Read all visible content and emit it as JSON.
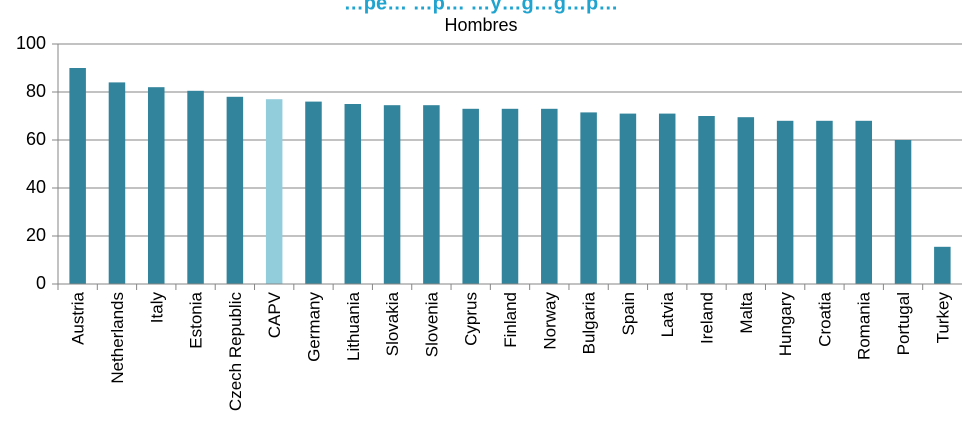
{
  "chart_data": {
    "type": "bar",
    "title": "",
    "top_title_partial": "…pe…              …p…                                     …y…g…g…p…",
    "subtitle": "Hombres",
    "xlabel": "",
    "ylabel": "",
    "ylim": [
      0,
      100
    ],
    "yticks": [
      0,
      20,
      40,
      60,
      80,
      100
    ],
    "grid": true,
    "legend": "none",
    "colors": {
      "bar": "#31849b",
      "highlight": "#92cddc",
      "grid": "#868686",
      "axis": "#868686",
      "title_accent": "#1fa3cf"
    },
    "categories": [
      "Austria",
      "Netherlands",
      "Italy",
      "Estonia",
      "Czech Republic",
      "CAPV",
      "Germany",
      "Lithuania",
      "Slovakia",
      "Slovenia",
      "Cyprus",
      "Finland",
      "Norway",
      "Bulgaria",
      "Spain",
      "Latvia",
      "Ireland",
      "Malta",
      "Hungary",
      "Croatia",
      "Romania",
      "Portugal",
      "Turkey"
    ],
    "values": [
      90,
      84,
      82,
      80.5,
      78,
      77,
      76,
      75,
      74.5,
      74.5,
      73,
      73,
      73,
      71.5,
      71,
      71,
      70,
      69.5,
      68,
      68,
      68,
      60,
      15.5
    ],
    "highlight_category": "CAPV"
  }
}
